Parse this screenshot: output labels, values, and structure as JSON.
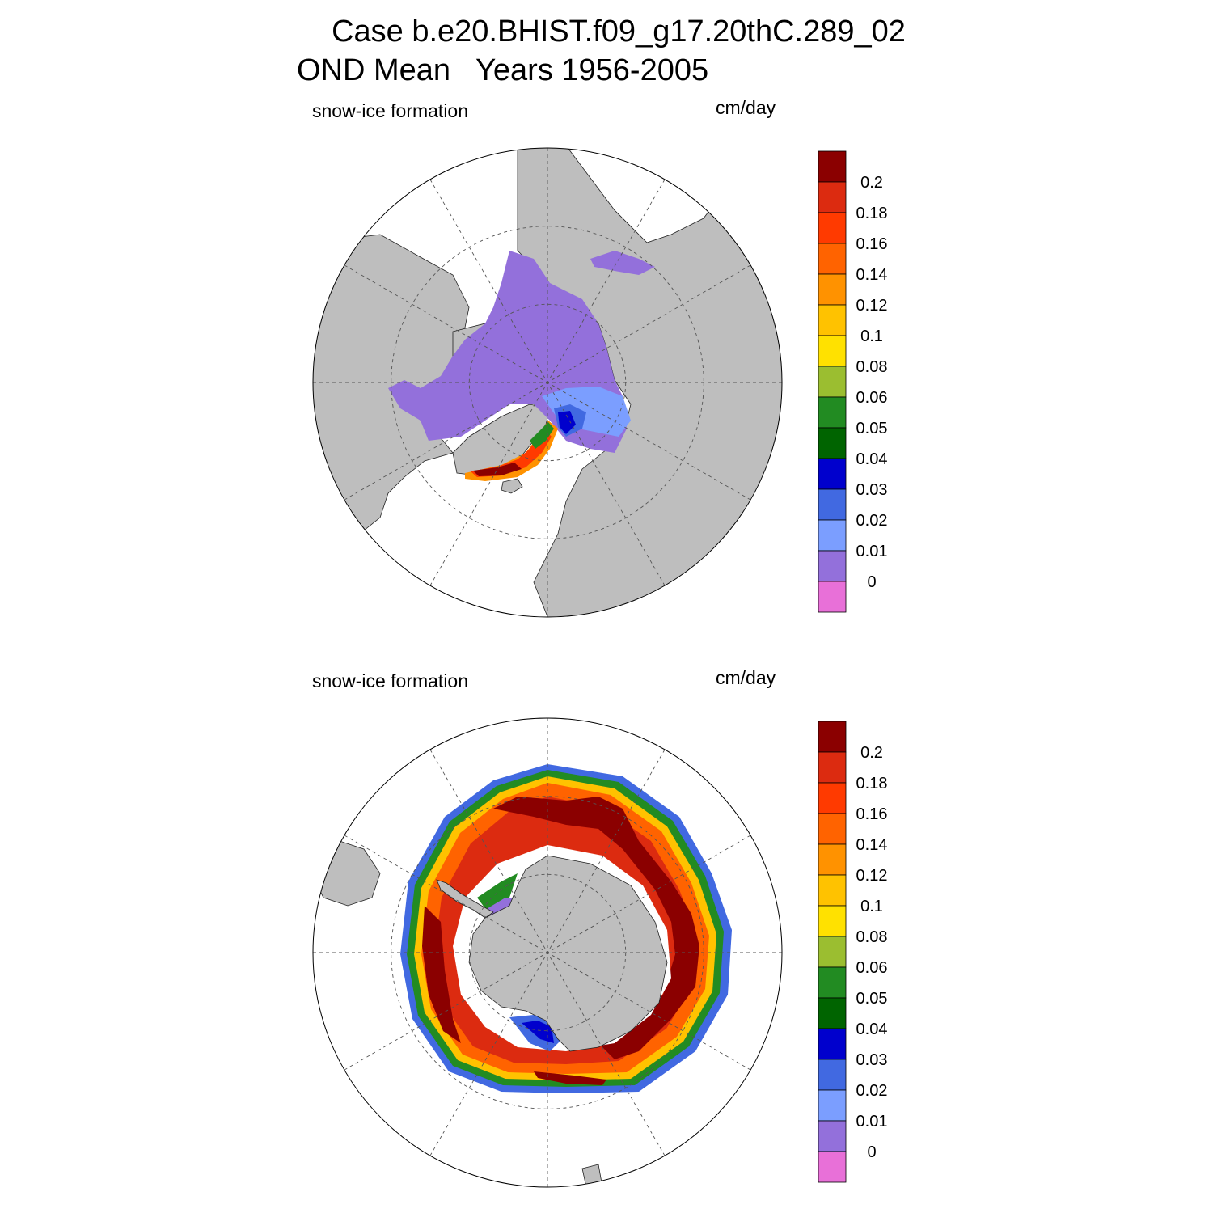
{
  "title": {
    "line1": "Case b.e20.BHIST.f09_g17.20thC.289_02",
    "line2": "OND Mean   Years 1956-2005"
  },
  "panels": [
    {
      "hemisphere": "north",
      "variable_label": "snow-ice formation",
      "units_label": "cm/day"
    },
    {
      "hemisphere": "south",
      "variable_label": "snow-ice formation",
      "units_label": "cm/day"
    }
  ],
  "colorbar": {
    "levels": [
      "0.2",
      "0.18",
      "0.16",
      "0.14",
      "0.12",
      "0.1",
      "0.08",
      "0.06",
      "0.05",
      "0.04",
      "0.03",
      "0.02",
      "0.01",
      "0"
    ],
    "colors": [
      "#8b0000",
      "#dc2b10",
      "#ff3a00",
      "#ff6300",
      "#ff9200",
      "#ffc200",
      "#ffe100",
      "#9bbe30",
      "#228b22",
      "#006400",
      "#0000cd",
      "#4169e1",
      "#7b9eff",
      "#9370db",
      "#e870d8"
    ]
  },
  "colors": {
    "land": "#bebebe",
    "ocean": "#ffffff",
    "grid": "#555555"
  }
}
